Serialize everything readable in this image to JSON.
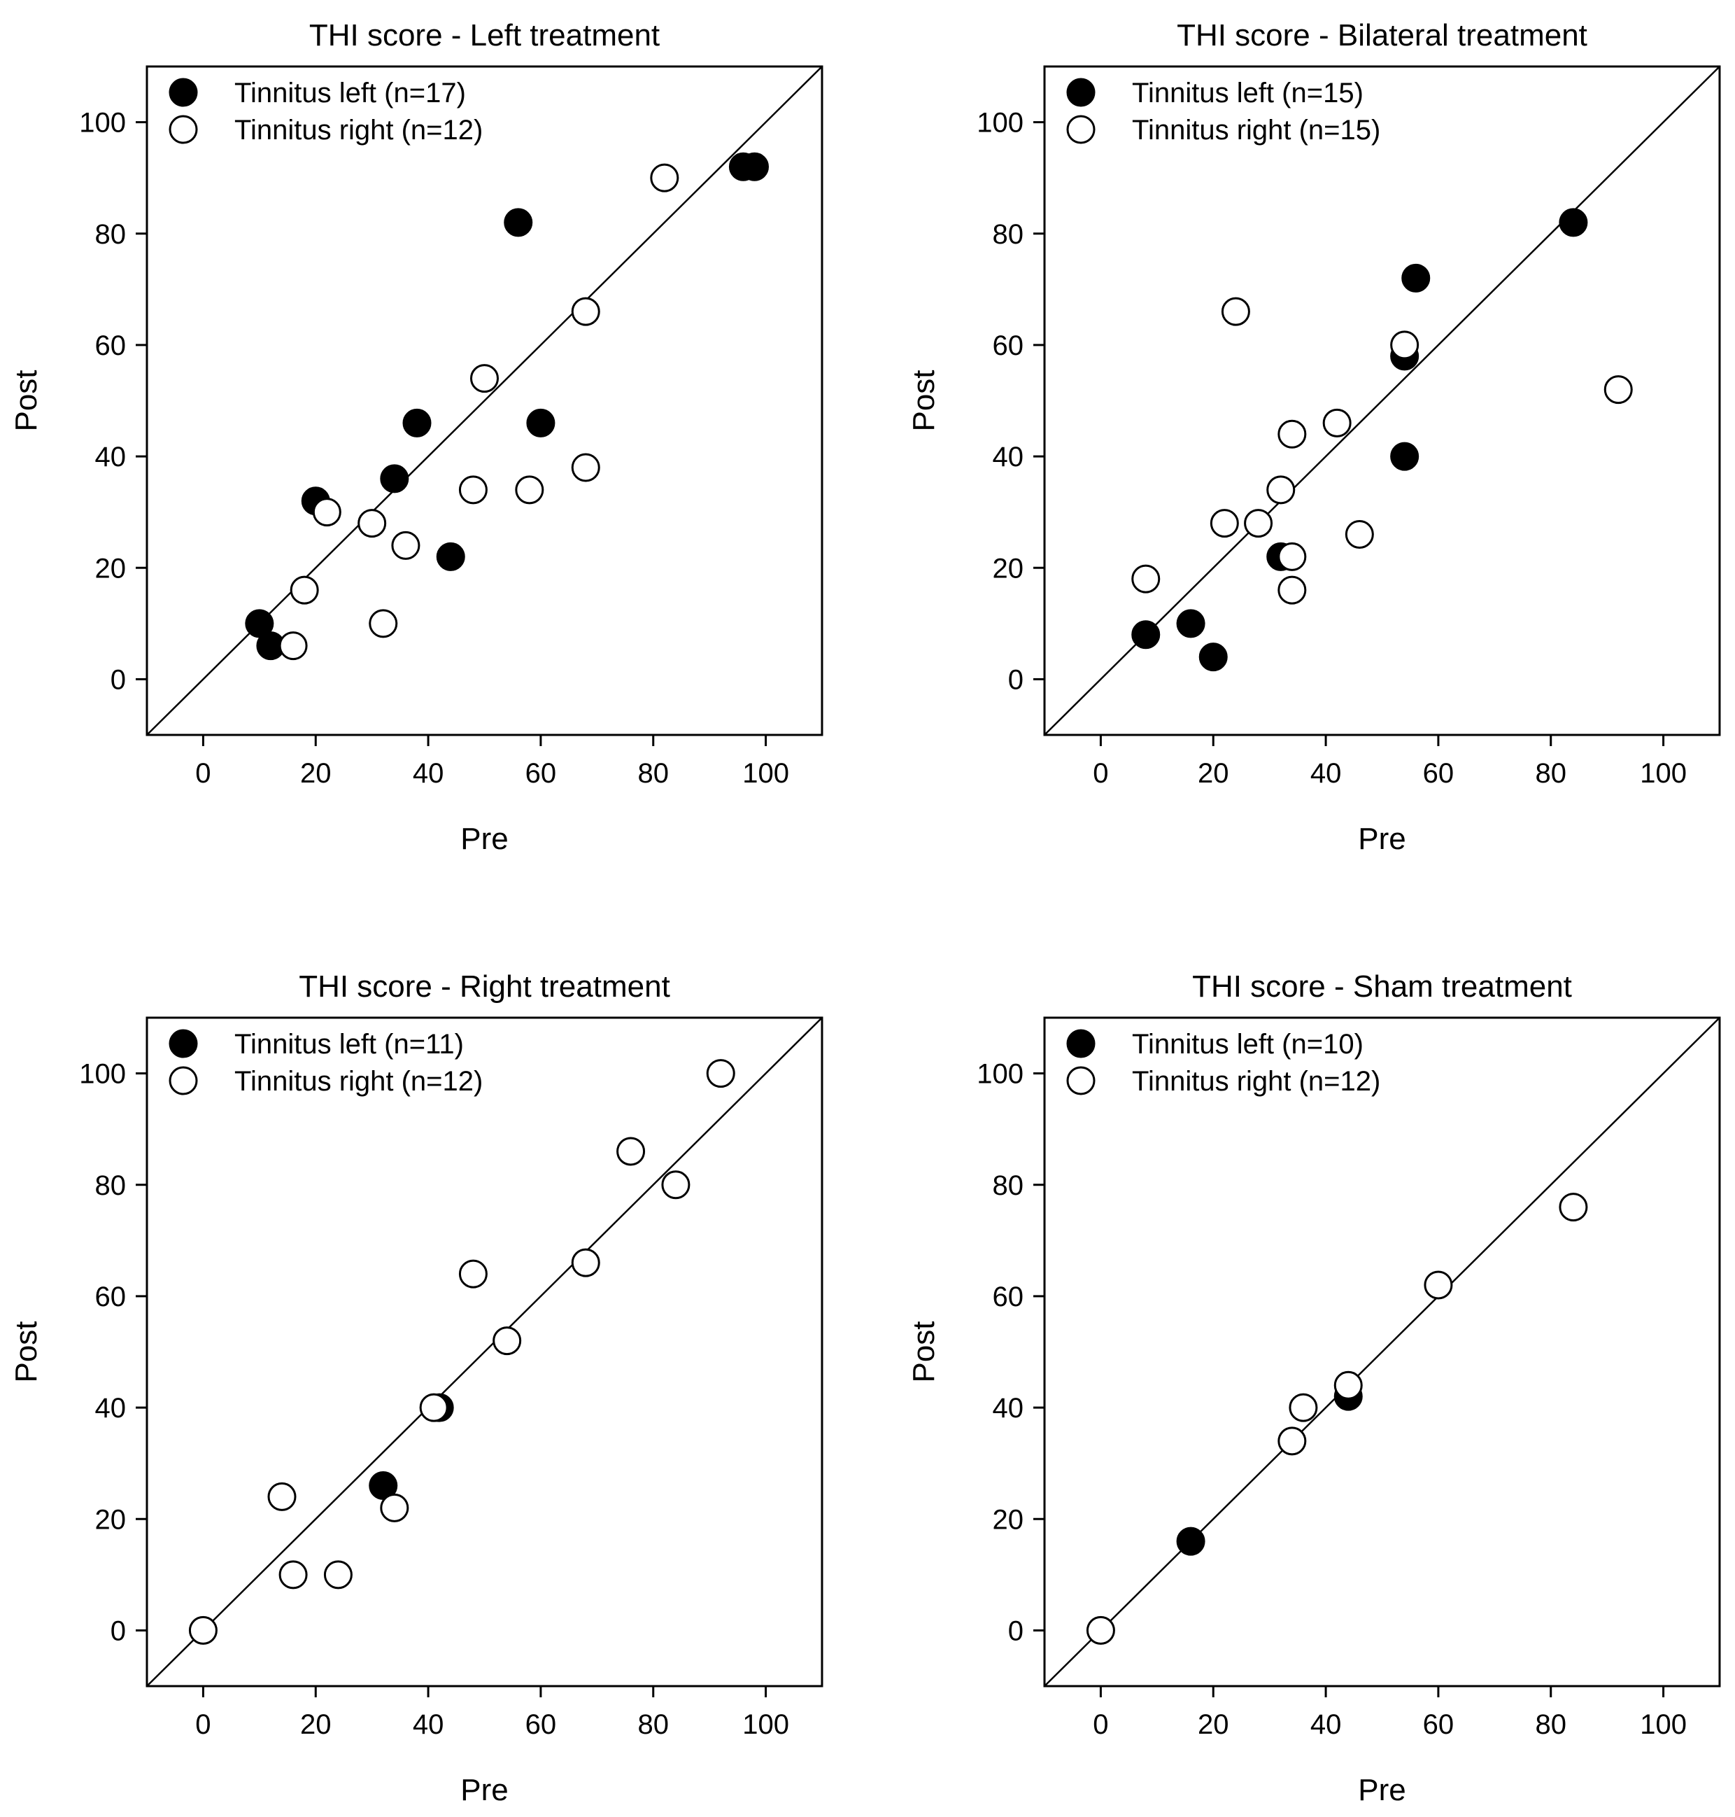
{
  "chart_data": [
    {
      "type": "scatter",
      "title": "THI score - Left treatment",
      "xlabel": "Pre",
      "ylabel": "Post",
      "xlim": [
        -10,
        110
      ],
      "ylim": [
        -10,
        110
      ],
      "xticks": [
        0,
        20,
        40,
        60,
        80,
        100
      ],
      "yticks": [
        0,
        20,
        40,
        60,
        80,
        100
      ],
      "identity_line": true,
      "legend_position": "top-left",
      "series": [
        {
          "name": "Tinnitus left (n=17)",
          "marker": "filled-circle",
          "points": [
            [
              10,
              10
            ],
            [
              12,
              6
            ],
            [
              20,
              32
            ],
            [
              34,
              36
            ],
            [
              38,
              46
            ],
            [
              44,
              22
            ],
            [
              56,
              82
            ],
            [
              60,
              46
            ],
            [
              96,
              92
            ],
            [
              98,
              92
            ]
          ]
        },
        {
          "name": "Tinnitus right (n=12)",
          "marker": "open-circle",
          "points": [
            [
              16,
              6
            ],
            [
              18,
              16
            ],
            [
              22,
              30
            ],
            [
              30,
              28
            ],
            [
              32,
              10
            ],
            [
              36,
              24
            ],
            [
              48,
              34
            ],
            [
              50,
              54
            ],
            [
              58,
              34
            ],
            [
              68,
              66
            ],
            [
              68,
              38
            ],
            [
              82,
              90
            ]
          ]
        }
      ]
    },
    {
      "type": "scatter",
      "title": "THI score - Bilateral treatment",
      "xlabel": "Pre",
      "ylabel": "Post",
      "xlim": [
        -10,
        110
      ],
      "ylim": [
        -10,
        110
      ],
      "xticks": [
        0,
        20,
        40,
        60,
        80,
        100
      ],
      "yticks": [
        0,
        20,
        40,
        60,
        80,
        100
      ],
      "identity_line": true,
      "legend_position": "top-left",
      "series": [
        {
          "name": "Tinnitus left (n=15)",
          "marker": "filled-circle",
          "points": [
            [
              8,
              8
            ],
            [
              16,
              10
            ],
            [
              20,
              4
            ],
            [
              32,
              22
            ],
            [
              54,
              58
            ],
            [
              54,
              40
            ],
            [
              56,
              72
            ],
            [
              84,
              82
            ]
          ]
        },
        {
          "name": "Tinnitus right (n=15)",
          "marker": "open-circle",
          "points": [
            [
              8,
              18
            ],
            [
              22,
              28
            ],
            [
              24,
              66
            ],
            [
              28,
              28
            ],
            [
              32,
              34
            ],
            [
              34,
              44
            ],
            [
              34,
              22
            ],
            [
              34,
              16
            ],
            [
              42,
              46
            ],
            [
              46,
              26
            ],
            [
              54,
              60
            ],
            [
              92,
              52
            ]
          ]
        }
      ]
    },
    {
      "type": "scatter",
      "title": "THI score - Right treatment",
      "xlabel": "Pre",
      "ylabel": "Post",
      "xlim": [
        -10,
        110
      ],
      "ylim": [
        -10,
        110
      ],
      "xticks": [
        0,
        20,
        40,
        60,
        80,
        100
      ],
      "yticks": [
        0,
        20,
        40,
        60,
        80,
        100
      ],
      "identity_line": true,
      "legend_position": "top-left",
      "series": [
        {
          "name": "Tinnitus left (n=11)",
          "marker": "filled-circle",
          "points": [
            [
              32,
              26
            ],
            [
              42,
              40
            ]
          ]
        },
        {
          "name": "Tinnitus right (n=12)",
          "marker": "open-circle",
          "points": [
            [
              0,
              0
            ],
            [
              14,
              24
            ],
            [
              16,
              10
            ],
            [
              24,
              10
            ],
            [
              34,
              22
            ],
            [
              41,
              40
            ],
            [
              48,
              64
            ],
            [
              54,
              52
            ],
            [
              68,
              66
            ],
            [
              76,
              86
            ],
            [
              84,
              80
            ],
            [
              92,
              100
            ]
          ]
        }
      ]
    },
    {
      "type": "scatter",
      "title": "THI score - Sham treatment",
      "xlabel": "Pre",
      "ylabel": "Post",
      "xlim": [
        -10,
        110
      ],
      "ylim": [
        -10,
        110
      ],
      "xticks": [
        0,
        20,
        40,
        60,
        80,
        100
      ],
      "yticks": [
        0,
        20,
        40,
        60,
        80,
        100
      ],
      "identity_line": true,
      "legend_position": "top-left",
      "series": [
        {
          "name": "Tinnitus left (n=10)",
          "marker": "filled-circle",
          "points": [
            [
              16,
              16
            ],
            [
              44,
              42
            ]
          ]
        },
        {
          "name": "Tinnitus right (n=12)",
          "marker": "open-circle",
          "points": [
            [
              0,
              0
            ],
            [
              34,
              34
            ],
            [
              36,
              40
            ],
            [
              44,
              44
            ],
            [
              60,
              62
            ],
            [
              84,
              76
            ]
          ]
        }
      ]
    }
  ]
}
